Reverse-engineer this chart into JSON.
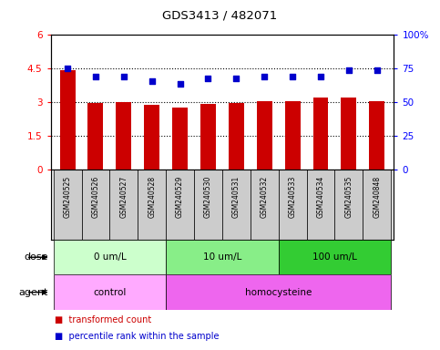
{
  "title": "GDS3413 / 482071",
  "samples": [
    "GSM240525",
    "GSM240526",
    "GSM240527",
    "GSM240528",
    "GSM240529",
    "GSM240530",
    "GSM240531",
    "GSM240532",
    "GSM240533",
    "GSM240534",
    "GSM240535",
    "GSM240848"
  ],
  "transformed_count": [
    4.43,
    2.97,
    3.01,
    2.88,
    2.78,
    2.93,
    2.97,
    3.06,
    3.04,
    3.2,
    3.22,
    3.07
  ],
  "percentile_rank": [
    75,
    69,
    69,
    66,
    64,
    68,
    68,
    69,
    69,
    69,
    74,
    74
  ],
  "bar_color": "#cc0000",
  "dot_color": "#0000cc",
  "left_ylim": [
    0,
    6
  ],
  "left_yticks": [
    0,
    1.5,
    3,
    4.5,
    6
  ],
  "left_yticklabels": [
    "0",
    "1.5",
    "3",
    "4.5",
    "6"
  ],
  "right_ylim": [
    0,
    100
  ],
  "right_yticks": [
    0,
    25,
    50,
    75,
    100
  ],
  "right_yticklabels": [
    "0",
    "25",
    "50",
    "75",
    "100%"
  ],
  "hlines": [
    1.5,
    3.0,
    4.5
  ],
  "dose_groups": [
    {
      "label": "0 um/L",
      "start": 0,
      "end": 4,
      "color": "#ccffcc"
    },
    {
      "label": "10 um/L",
      "start": 4,
      "end": 8,
      "color": "#88ee88"
    },
    {
      "label": "100 um/L",
      "start": 8,
      "end": 12,
      "color": "#33cc33"
    }
  ],
  "agent_groups": [
    {
      "label": "control",
      "start": 0,
      "end": 4,
      "color": "#ffaaff"
    },
    {
      "label": "homocysteine",
      "start": 4,
      "end": 12,
      "color": "#ee66ee"
    }
  ],
  "dose_label": "dose",
  "agent_label": "agent",
  "bar_color_legend": "#cc0000",
  "dot_color_legend": "#0000cc",
  "legend_label_bar": "transformed count",
  "legend_label_dot": "percentile rank within the sample",
  "background_color": "#ffffff"
}
